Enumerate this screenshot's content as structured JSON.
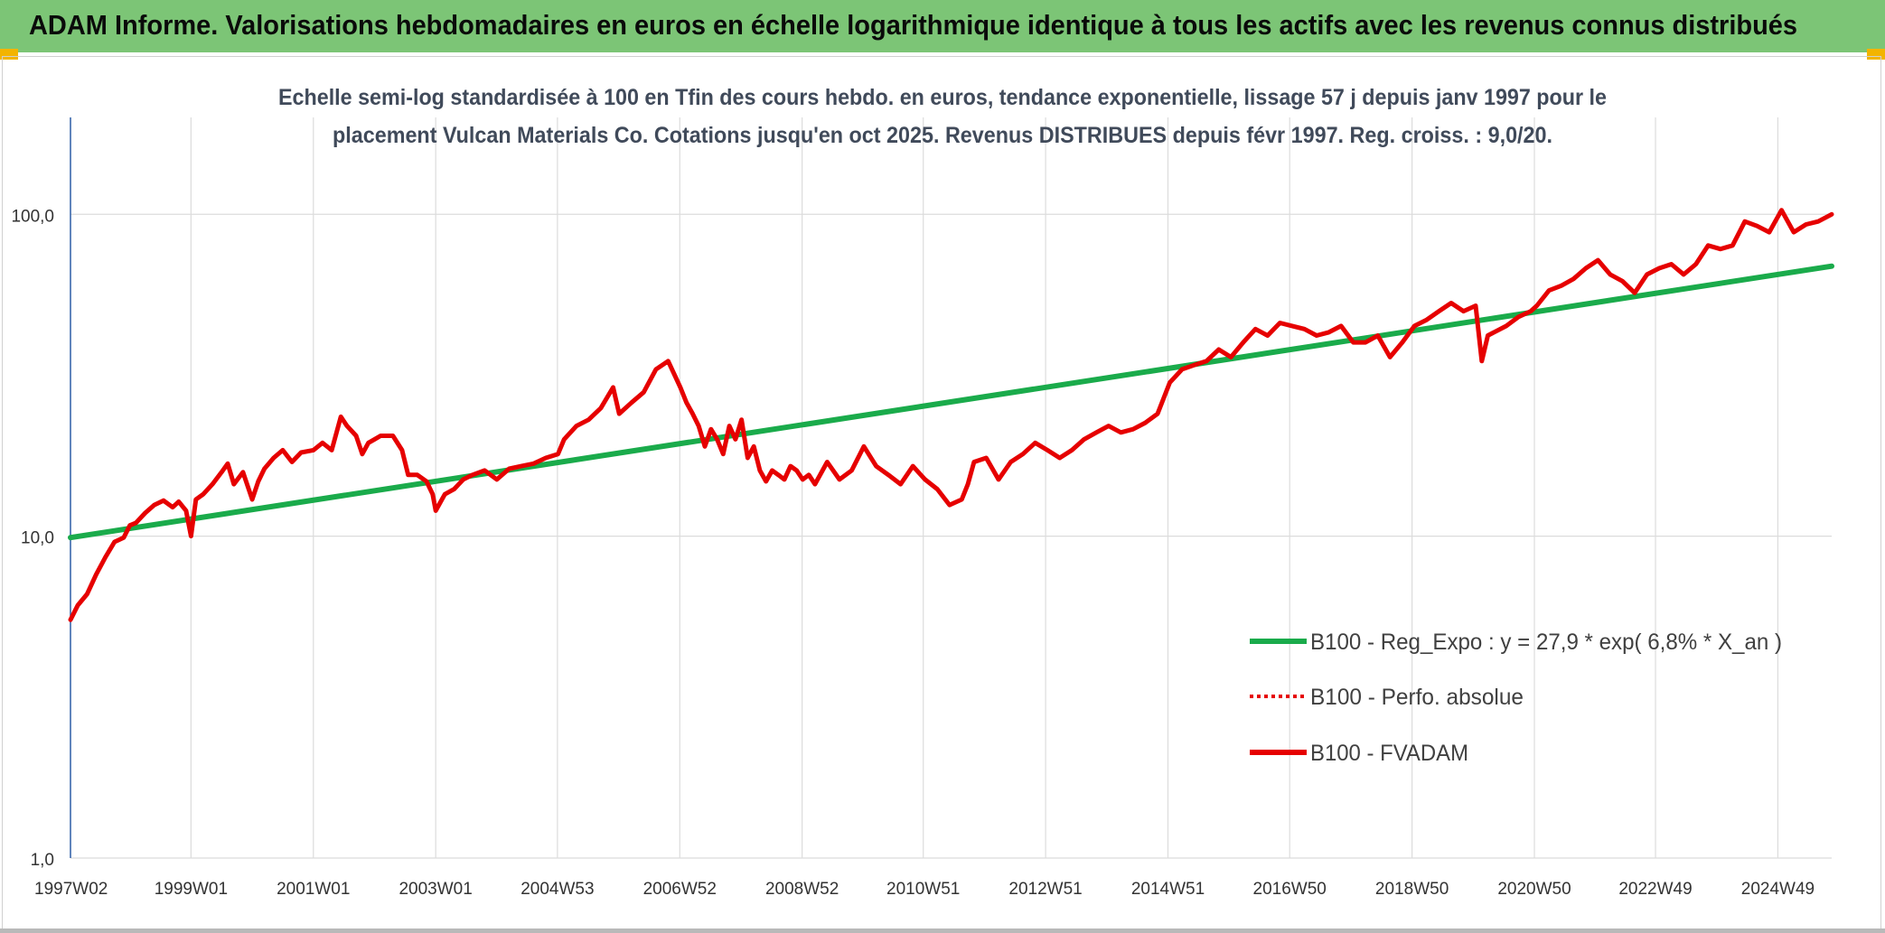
{
  "page": {
    "banner_title": "ADAM Informe. Valorisations hebdomadaires en euros en échelle logarithmique identique à tous les actifs avec les revenus connus distribués",
    "accent_color": "#7cc576",
    "corner_color": "#f3b400"
  },
  "chart_data": {
    "type": "line",
    "title_lines": [
      "Echelle semi-log standardisée à 100 en Tfin des cours hebdo. en euros, tendance exponentielle, lissage 57 j depuis janv 1997 pour le",
      "placement Vulcan Materials Co. Cotations jusqu'en oct 2025. Revenus DISTRIBUES depuis févr 1997. Reg. croiss. : 9,0/20."
    ],
    "y_scale": "log",
    "ylim": [
      1,
      200
    ],
    "y_ticks": [
      {
        "value": 1,
        "label": "1,0"
      },
      {
        "value": 10,
        "label": "10,0"
      },
      {
        "value": 100,
        "label": "100,0"
      }
    ],
    "xlim": [
      1997.03,
      2025.82
    ],
    "x_ticks": [
      {
        "t": 1997.03,
        "label": "1997W02"
      },
      {
        "t": 1999.0,
        "label": "1999W01"
      },
      {
        "t": 2001.0,
        "label": "2001W01"
      },
      {
        "t": 2003.0,
        "label": "2003W01"
      },
      {
        "t": 2004.99,
        "label": "2004W53"
      },
      {
        "t": 2006.99,
        "label": "2006W52"
      },
      {
        "t": 2008.99,
        "label": "2008W52"
      },
      {
        "t": 2010.97,
        "label": "2010W51"
      },
      {
        "t": 2012.97,
        "label": "2012W51"
      },
      {
        "t": 2014.97,
        "label": "2014W51"
      },
      {
        "t": 2016.96,
        "label": "2016W50"
      },
      {
        "t": 2018.96,
        "label": "2018W50"
      },
      {
        "t": 2020.96,
        "label": "2020W50"
      },
      {
        "t": 2022.94,
        "label": "2022W49"
      },
      {
        "t": 2024.94,
        "label": "2024W49"
      }
    ],
    "grid": true,
    "legend_position": "lower-right",
    "series": [
      {
        "name": "B100 - Reg_Expo : y = 27,9 * exp( 6,8% *  X_an )",
        "color": "#1aab4b",
        "style": "solid",
        "x": [
          1997.03,
          2025.82
        ],
        "y": [
          9.9,
          69.0
        ]
      },
      {
        "name": "B100 - Perfo. absolue",
        "color": "#e60000",
        "style": "dotted",
        "x": [],
        "y": []
      },
      {
        "name": "B100 - FVADAM",
        "color": "#e60000",
        "style": "solid",
        "x": [
          1997.03,
          1997.15,
          1997.3,
          1997.45,
          1997.6,
          1997.75,
          1997.9,
          1998.0,
          1998.1,
          1998.25,
          1998.4,
          1998.55,
          1998.7,
          1998.8,
          1998.92,
          1999.0,
          1999.08,
          1999.2,
          1999.35,
          1999.5,
          1999.6,
          1999.7,
          1999.85,
          2000.0,
          2000.1,
          2000.2,
          2000.35,
          2000.5,
          2000.65,
          2000.8,
          2001.0,
          2001.15,
          2001.3,
          2001.45,
          2001.55,
          2001.7,
          2001.8,
          2001.9,
          2002.0,
          2002.1,
          2002.3,
          2002.45,
          2002.55,
          2002.7,
          2002.85,
          2002.95,
          2003.0,
          2003.15,
          2003.3,
          2003.45,
          2003.6,
          2003.8,
          2004.0,
          2004.2,
          2004.4,
          2004.6,
          2004.8,
          2005.0,
          2005.1,
          2005.3,
          2005.5,
          2005.7,
          2005.9,
          2006.0,
          2006.2,
          2006.4,
          2006.6,
          2006.8,
          2007.0,
          2007.1,
          2007.2,
          2007.3,
          2007.4,
          2007.5,
          2007.6,
          2007.7,
          2007.8,
          2007.9,
          2008.0,
          2008.1,
          2008.2,
          2008.3,
          2008.4,
          2008.5,
          2008.6,
          2008.7,
          2008.8,
          2008.9,
          2009.0,
          2009.1,
          2009.2,
          2009.4,
          2009.6,
          2009.8,
          2010.0,
          2010.2,
          2010.4,
          2010.6,
          2010.8,
          2011.0,
          2011.2,
          2011.4,
          2011.6,
          2011.7,
          2011.8,
          2012.0,
          2012.2,
          2012.4,
          2012.6,
          2012.8,
          2013.0,
          2013.2,
          2013.4,
          2013.6,
          2013.8,
          2014.0,
          2014.2,
          2014.4,
          2014.6,
          2014.8,
          2015.0,
          2015.2,
          2015.4,
          2015.6,
          2015.8,
          2016.0,
          2016.2,
          2016.4,
          2016.6,
          2016.8,
          2017.0,
          2017.2,
          2017.4,
          2017.6,
          2017.8,
          2018.0,
          2018.2,
          2018.4,
          2018.6,
          2018.8,
          2019.0,
          2019.2,
          2019.4,
          2019.6,
          2019.8,
          2020.0,
          2020.1,
          2020.2,
          2020.3,
          2020.5,
          2020.7,
          2020.9,
          2021.0,
          2021.2,
          2021.4,
          2021.6,
          2021.8,
          2022.0,
          2022.2,
          2022.4,
          2022.6,
          2022.8,
          2023.0,
          2023.2,
          2023.4,
          2023.6,
          2023.8,
          2024.0,
          2024.2,
          2024.4,
          2024.6,
          2024.8,
          2025.0,
          2025.2,
          2025.4,
          2025.6,
          2025.82
        ],
        "y": [
          5.5,
          6.1,
          6.6,
          7.6,
          8.6,
          9.6,
          9.9,
          10.8,
          11.0,
          11.8,
          12.5,
          12.9,
          12.3,
          12.8,
          12.0,
          10.0,
          13.0,
          13.5,
          14.5,
          15.8,
          16.8,
          14.5,
          15.8,
          13.0,
          14.8,
          16.2,
          17.5,
          18.5,
          17.0,
          18.2,
          18.5,
          19.5,
          18.5,
          23.5,
          22.0,
          20.5,
          18.0,
          19.5,
          20.0,
          20.5,
          20.5,
          18.5,
          15.5,
          15.5,
          14.8,
          13.5,
          12.0,
          13.5,
          14.0,
          15.0,
          15.5,
          16.0,
          15.0,
          16.2,
          16.5,
          16.8,
          17.5,
          18.0,
          20.0,
          22.0,
          23.0,
          25.0,
          29.0,
          24.0,
          26.0,
          28.0,
          33.0,
          35.0,
          29.0,
          26.0,
          24.0,
          22.0,
          19.0,
          21.5,
          20.0,
          18.0,
          22.0,
          20.0,
          23.0,
          17.5,
          19.0,
          16.0,
          14.8,
          16.0,
          15.5,
          15.0,
          16.5,
          16.0,
          15.0,
          15.5,
          14.5,
          17.0,
          15.0,
          16.0,
          19.0,
          16.5,
          15.5,
          14.5,
          16.5,
          15.0,
          14.0,
          12.5,
          13.0,
          14.5,
          17.0,
          17.5,
          15.0,
          17.0,
          18.0,
          19.5,
          18.5,
          17.5,
          18.5,
          20.0,
          21.0,
          22.0,
          21.0,
          21.5,
          22.5,
          24.0,
          30.0,
          33.0,
          34.0,
          35.0,
          38.0,
          36.0,
          40.0,
          44.0,
          42.0,
          46.0,
          45.0,
          44.0,
          42.0,
          43.0,
          45.0,
          40.0,
          40.0,
          42.0,
          36.0,
          40.0,
          45.0,
          47.0,
          50.0,
          53.0,
          50.0,
          52.0,
          35.0,
          42.0,
          43.0,
          45.0,
          48.0,
          50.0,
          52.0,
          58.0,
          60.0,
          63.0,
          68.0,
          72.0,
          65.0,
          62.0,
          57.0,
          65.0,
          68.0,
          70.0,
          65.0,
          70.0,
          80.0,
          78.0,
          80.0,
          95.0,
          92.0,
          88.0,
          103.0,
          88.0,
          93.0,
          95.0,
          100.0
        ]
      }
    ]
  }
}
